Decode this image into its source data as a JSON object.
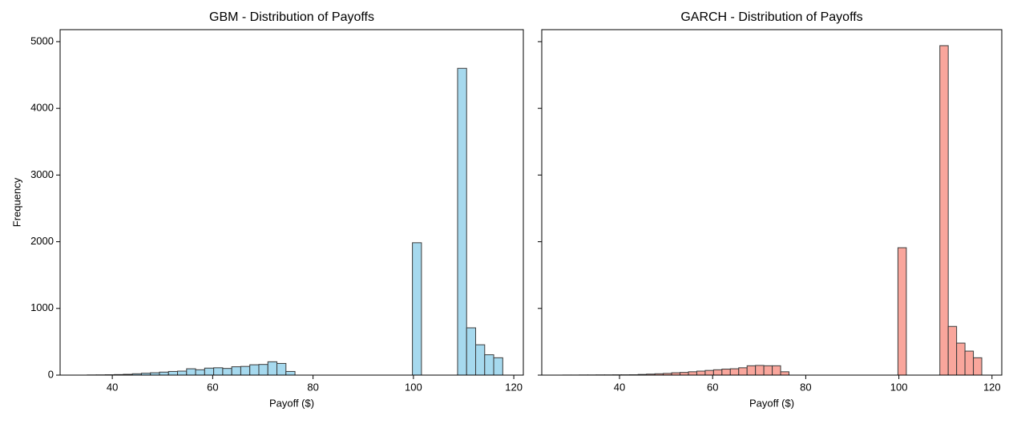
{
  "chart_data": [
    {
      "type": "histogram",
      "title": "GBM - Distribution of Payoffs",
      "xlabel": "Payoff ($)",
      "ylabel": "Frequency",
      "bins": [
        35,
        36.8,
        38.6,
        40.4,
        42.2,
        44,
        45.8,
        47.6,
        49.4,
        51.2,
        53,
        54.8,
        56.6,
        58.4,
        60.2,
        62,
        63.8,
        65.6,
        67.4,
        69.2,
        71,
        72.8,
        74.6,
        76.4,
        78.2,
        80,
        81.8,
        83.6,
        85.4,
        87.2,
        89,
        90.8,
        92.6,
        94.4,
        96.2,
        98,
        99.8,
        101.6,
        103.4,
        105.2,
        107,
        108.8,
        110.6,
        112.4,
        114.2,
        116,
        117.8
      ],
      "values": [
        2,
        3,
        5,
        8,
        12,
        20,
        28,
        35,
        45,
        55,
        60,
        95,
        80,
        105,
        110,
        100,
        125,
        130,
        155,
        160,
        200,
        175,
        55,
        0,
        0,
        0,
        0,
        0,
        0,
        0,
        0,
        0,
        0,
        0,
        0,
        0,
        1985,
        0,
        0,
        0,
        0,
        4600,
        709,
        455,
        305,
        260
      ],
      "color": "#a6d9ee",
      "edgecolor": "#3a3a3a",
      "xlim": [
        29.6,
        121.9
      ],
      "xticks": [
        40,
        60,
        80,
        100,
        120
      ],
      "ylim": [
        0,
        5180
      ],
      "yticks": [
        0,
        1000,
        2000,
        3000,
        4000,
        5000
      ]
    },
    {
      "type": "histogram",
      "title": "GARCH - Distribution of Payoffs",
      "xlabel": "Payoff ($)",
      "bins": [
        27.8,
        29.6,
        31.4,
        33.2,
        35,
        36.8,
        38.6,
        40.4,
        42.2,
        44,
        45.8,
        47.6,
        49.4,
        51.2,
        53,
        54.8,
        56.6,
        58.4,
        60.2,
        62,
        63.8,
        65.6,
        67.4,
        69.2,
        71,
        72.8,
        74.6,
        76.4,
        78.2,
        80,
        81.8,
        83.6,
        85.4,
        87.2,
        89,
        90.8,
        92.6,
        94.4,
        96.2,
        98,
        99.8,
        101.6,
        103.4,
        105.2,
        107,
        108.8,
        110.6,
        112.4,
        114.2,
        116,
        117.8
      ],
      "values": [
        1,
        1,
        2,
        2,
        3,
        3,
        4,
        4,
        5,
        10,
        15,
        20,
        25,
        35,
        40,
        50,
        60,
        70,
        80,
        90,
        95,
        110,
        140,
        145,
        140,
        140,
        50,
        0,
        0,
        0,
        0,
        0,
        0,
        0,
        0,
        0,
        0,
        0,
        0,
        0,
        1910,
        0,
        0,
        0,
        0,
        4940,
        730,
        480,
        360,
        260
      ],
      "color": "#f9a69c",
      "edgecolor": "#3a3a3a",
      "xlim": [
        23.3,
        122.1
      ],
      "xticks": [
        40,
        60,
        80,
        100,
        120
      ],
      "ylim": [
        0,
        5180
      ]
    }
  ]
}
